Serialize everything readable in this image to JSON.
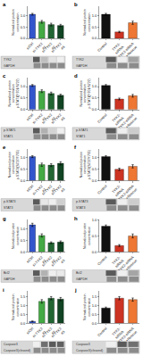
{
  "chart_data": [
    {
      "type": "bar",
      "title": "a",
      "ylabel": "Normalized protein\nconcentration",
      "categories": [
        "siCtrl",
        "si-TYK2\n#1",
        "si-TYK2\n#2",
        "si-TYK2\n#3"
      ],
      "values": [
        1.05,
        0.72,
        0.6,
        0.56
      ],
      "errors": [
        0.04,
        0.06,
        0.06,
        0.05
      ],
      "colors": [
        "#3355cc",
        "#44aa44",
        "#226633",
        "#114422"
      ],
      "ylim": [
        0,
        1.4
      ],
      "yticks": [
        {
          "value": 0,
          "label": "0.0"
        },
        0.5,
        {
          "value": 1,
          "label": "1.0"
        }
      ],
      "grid": false,
      "annotations": [
        "TYK2",
        "GAPDH"
      ]
    },
    {
      "type": "bar",
      "title": "b",
      "ylabel": "Normalized protein\nconcentration",
      "categories": [
        "Control",
        "TYK2-\nsiRNA",
        "TYK2-siRNA\n+Rescue"
      ],
      "values": [
        1.05,
        0.28,
        0.68
      ],
      "errors": [
        0.04,
        0.03,
        0.07
      ],
      "colors": [
        "#111111",
        "#cc3322",
        "#ee7733"
      ],
      "ylim": [
        0,
        1.4
      ],
      "yticks": [
        {
          "value": 0,
          "label": "0.0"
        },
        0.5,
        {
          "value": 1,
          "label": "1.0"
        }
      ],
      "grid": false,
      "annotations": [
        "TYK2",
        "GAPDH"
      ]
    },
    {
      "type": "bar",
      "title": "c",
      "ylabel": "Normalized protein\nconcentration\np-STAT1(Y701/S727)",
      "categories": [
        "siCtrl",
        "si-TYK2\n#1",
        "si-TYK2\n#2",
        "si-TYK2\n#3"
      ],
      "values": [
        1.05,
        0.8,
        0.7,
        0.62
      ],
      "errors": [
        0.04,
        0.06,
        0.06,
        0.05
      ],
      "colors": [
        "#3355cc",
        "#44aa44",
        "#226633",
        "#114422"
      ],
      "ylim": [
        0,
        1.4
      ],
      "yticks": [
        {
          "value": 0,
          "label": "0.0"
        },
        0.5,
        {
          "value": 1,
          "label": "1.0"
        }
      ],
      "grid": false,
      "annotations": [
        "p-STAT1",
        "STAT1"
      ]
    },
    {
      "type": "bar",
      "title": "d",
      "ylabel": "Normalized protein\nconcentration\np-STAT1(Y701/S727)",
      "categories": [
        "Control",
        "TYK2-\nsiRNA",
        "TYK2-siRNA\n+Rescue"
      ],
      "values": [
        1.05,
        0.46,
        0.6
      ],
      "errors": [
        0.04,
        0.04,
        0.06
      ],
      "colors": [
        "#111111",
        "#cc3322",
        "#ee7733"
      ],
      "ylim": [
        0,
        1.4
      ],
      "yticks": [
        {
          "value": 0,
          "label": "0.0"
        },
        0.5,
        {
          "value": 1,
          "label": "1.0"
        }
      ],
      "grid": false,
      "annotations": [
        "p-STAT1",
        "STAT1"
      ]
    },
    {
      "type": "bar",
      "title": "e",
      "ylabel": "Normalized protein\nconcentration\np-STAT3(S727/Y705)",
      "categories": [
        "siCtrl",
        "si-TYK2\n#1",
        "si-TYK2\n#2",
        "si-TYK2\n#3"
      ],
      "values": [
        1.05,
        0.7,
        0.68,
        0.76
      ],
      "errors": [
        0.04,
        0.07,
        0.06,
        0.07
      ],
      "colors": [
        "#3355cc",
        "#44aa44",
        "#226633",
        "#114422"
      ],
      "ylim": [
        0,
        1.4
      ],
      "yticks": [
        {
          "value": 0,
          "label": "0.0"
        },
        0.5,
        {
          "value": 1,
          "label": "1.0"
        }
      ],
      "grid": false,
      "annotations": [
        "p-STAT3",
        "STAT3"
      ]
    },
    {
      "type": "bar",
      "title": "f",
      "ylabel": "Normalized protein\nconcentration\np-STAT3(S727/Y705)",
      "categories": [
        "Control",
        "TYK2-\nsiRNA",
        "TYK2-siRNA\n+Rescue"
      ],
      "values": [
        1.05,
        0.5,
        0.63
      ],
      "errors": [
        0.04,
        0.05,
        0.07
      ],
      "colors": [
        "#111111",
        "#cc3322",
        "#ee7733"
      ],
      "ylim": [
        0,
        1.4
      ],
      "yticks": [
        {
          "value": 0,
          "label": "0.0"
        },
        0.5,
        {
          "value": 1,
          "label": "1.0"
        }
      ],
      "grid": false,
      "annotations": [
        "p-STAT3",
        "STAT3"
      ]
    },
    {
      "type": "bar",
      "title": "g",
      "ylabel": "Normalized protein\nconcentration",
      "categories": [
        "siCtrl",
        "si-TYK2\n#1",
        "si-TYK2\n#2",
        "si-TYK2\n#3"
      ],
      "values": [
        1.18,
        0.72,
        0.4,
        0.43
      ],
      "errors": [
        0.07,
        0.07,
        0.04,
        0.05
      ],
      "colors": [
        "#3355cc",
        "#44aa44",
        "#226633",
        "#114422"
      ],
      "ylim": [
        0,
        1.4
      ],
      "yticks": [
        {
          "value": 0,
          "label": "0.0"
        },
        0.5,
        {
          "value": 1,
          "label": "1.0"
        }
      ],
      "grid": false,
      "annotations": [
        "Bcl2",
        "GAPDH"
      ]
    },
    {
      "type": "bar",
      "title": "h",
      "ylabel": "Normalized protein\nconcentration",
      "categories": [
        "Control",
        "TYK2-\nsiRNA",
        "TYK2-siRNA\n+Rescue"
      ],
      "values": [
        0.8,
        0.2,
        0.5
      ],
      "errors": [
        0.04,
        0.03,
        0.06
      ],
      "colors": [
        "#111111",
        "#cc3322",
        "#ee7733"
      ],
      "ylim": [
        0,
        1.0
      ],
      "yticks": [
        {
          "value": 0,
          "label": "0.0"
        },
        0.5,
        {
          "value": 1,
          "label": "1.0"
        }
      ],
      "grid": false,
      "annotations": [
        "Bcl2",
        "GAPDH"
      ]
    },
    {
      "type": "bar",
      "title": "i",
      "ylabel": "Normalized protein\nconcentration",
      "categories": [
        "siCtrl",
        "si-TYK2\n#1",
        "si-TYK2\n#2",
        "si-TYK2\n#3"
      ],
      "values": [
        0.1,
        1.22,
        1.4,
        1.35
      ],
      "errors": [
        0.02,
        0.1,
        0.09,
        0.09
      ],
      "colors": [
        "#3355cc",
        "#44aa44",
        "#226633",
        "#114422"
      ],
      "ylim": [
        0,
        1.8
      ],
      "yticks": [
        {
          "value": 0,
          "label": "0.0"
        },
        0.5,
        {
          "value": 1,
          "label": "1.0"
        },
        1.5
      ],
      "grid": false,
      "annotations": [
        "Caspase3",
        "Caspase3(cleaved)"
      ]
    },
    {
      "type": "bar",
      "title": "j",
      "ylabel": "Normalized protein\nconcentration",
      "categories": [
        "Control",
        "TYK2-\nsiRNA",
        "TYK2-siRNA\n+Rescue"
      ],
      "values": [
        0.85,
        1.4,
        1.32
      ],
      "errors": [
        0.05,
        0.09,
        0.09
      ],
      "colors": [
        "#111111",
        "#cc3322",
        "#ee7733"
      ],
      "ylim": [
        0,
        1.8
      ],
      "yticks": [
        {
          "value": 0,
          "label": "0.0"
        },
        0.5,
        {
          "value": 1,
          "label": "1.0"
        },
        1.5
      ],
      "grid": false,
      "annotations": [
        "Caspase3",
        "Caspase3(cleaved)"
      ]
    }
  ]
}
